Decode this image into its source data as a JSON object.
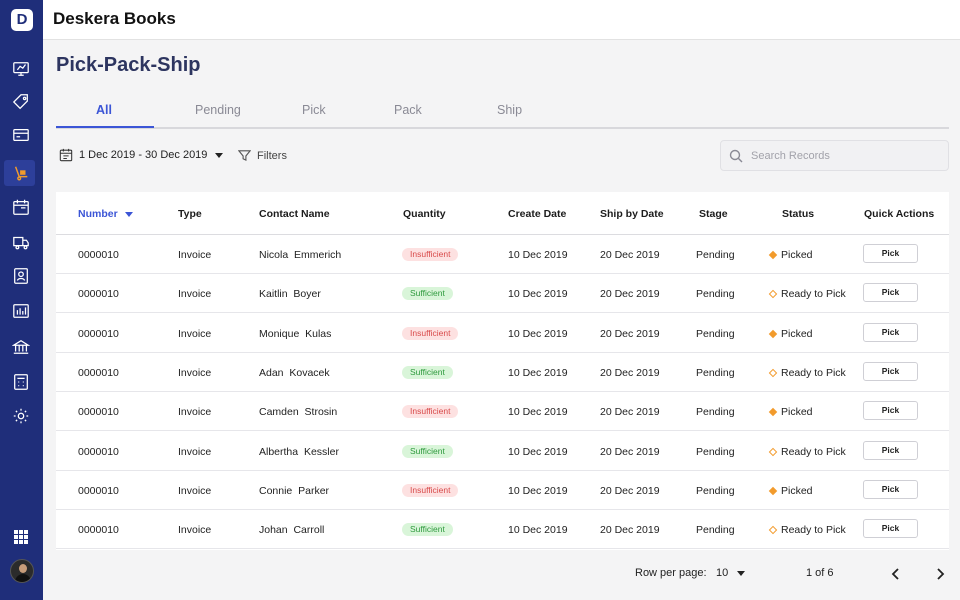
{
  "app": {
    "logo_letter": "D",
    "title": "Deskera Books"
  },
  "sidebar": {
    "icons": [
      "dashboard-icon",
      "tag-icon",
      "card-icon",
      "ship-icon",
      "calendar-icon",
      "truck-icon",
      "contact-icon",
      "report-icon",
      "bank-icon",
      "calculator-icon",
      "settings-icon"
    ],
    "active": "ship-icon",
    "accent": "#1f2e7a"
  },
  "page": {
    "title": "Pick-Pack-Ship"
  },
  "tabs": [
    {
      "label": "All",
      "active": true
    },
    {
      "label": "Pending",
      "active": false
    },
    {
      "label": "Pick",
      "active": false
    },
    {
      "label": "Pack",
      "active": false
    },
    {
      "label": "Ship",
      "active": false
    }
  ],
  "toolbar": {
    "date_range": "1 Dec 2019 - 30 Dec 2019",
    "filters_label": "Filters",
    "search_placeholder": "Search Records",
    "search_value": ""
  },
  "table": {
    "columns": [
      "Number",
      "Type",
      "Contact Name",
      "Quantity",
      "Create Date",
      "Ship by Date",
      "Stage",
      "Status",
      "Quick Actions"
    ],
    "sort_column": "Number",
    "rows": [
      {
        "number": "0000010",
        "type": "Invoice",
        "contact": "Nicola  Emmerich",
        "quantity": "Insufficient",
        "create": "10 Dec 2019",
        "ship": "20 Dec 2019",
        "stage": "Pending",
        "status": "Picked",
        "action": "Pick"
      },
      {
        "number": "0000010",
        "type": "Invoice",
        "contact": "Kaitlin  Boyer",
        "quantity": "Sufficient",
        "create": "10 Dec 2019",
        "ship": "20 Dec 2019",
        "stage": "Pending",
        "status": "Ready to Pick",
        "action": "Pick"
      },
      {
        "number": "0000010",
        "type": "Invoice",
        "contact": "Monique  Kulas",
        "quantity": "Insufficient",
        "create": "10 Dec 2019",
        "ship": "20 Dec 2019",
        "stage": "Pending",
        "status": "Picked",
        "action": "Pick"
      },
      {
        "number": "0000010",
        "type": "Invoice",
        "contact": "Adan  Kovacek",
        "quantity": "Sufficient",
        "create": "10 Dec 2019",
        "ship": "20 Dec 2019",
        "stage": "Pending",
        "status": "Ready to Pick",
        "action": "Pick"
      },
      {
        "number": "0000010",
        "type": "Invoice",
        "contact": "Camden  Strosin",
        "quantity": "Insufficient",
        "create": "10 Dec 2019",
        "ship": "20 Dec 2019",
        "stage": "Pending",
        "status": "Picked",
        "action": "Pick"
      },
      {
        "number": "0000010",
        "type": "Invoice",
        "contact": "Albertha  Kessler",
        "quantity": "Sufficient",
        "create": "10 Dec 2019",
        "ship": "20 Dec 2019",
        "stage": "Pending",
        "status": "Ready to Pick",
        "action": "Pick"
      },
      {
        "number": "0000010",
        "type": "Invoice",
        "contact": "Connie  Parker",
        "quantity": "Insufficient",
        "create": "10 Dec 2019",
        "ship": "20 Dec 2019",
        "stage": "Pending",
        "status": "Picked",
        "action": "Pick"
      },
      {
        "number": "0000010",
        "type": "Invoice",
        "contact": "Johan  Carroll",
        "quantity": "Sufficient",
        "create": "10 Dec 2019",
        "ship": "20 Dec 2019",
        "stage": "Pending",
        "status": "Ready to Pick",
        "action": "Pick"
      }
    ]
  },
  "pagination": {
    "rows_label": "Row per page:",
    "rows_value": "10",
    "page_label": "1 of 6"
  },
  "colors": {
    "accent_blue": "#3b55d6",
    "insufficient_bg": "#fde1e1",
    "sufficient_bg": "#d9f5d9",
    "status_orange": "#f29b2c"
  }
}
